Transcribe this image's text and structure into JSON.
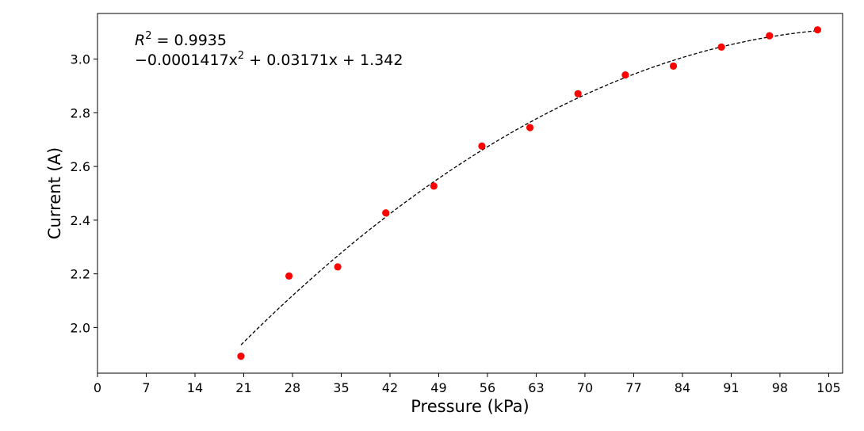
{
  "chart_data": {
    "type": "scatter",
    "xlabel": "Pressure (kPa)",
    "ylabel": "Current (A)",
    "xlim": [
      0,
      107
    ],
    "ylim": [
      1.83,
      3.17
    ],
    "x_ticks": [
      0,
      7,
      14,
      21,
      28,
      35,
      42,
      49,
      56,
      63,
      70,
      77,
      84,
      91,
      98,
      105
    ],
    "y_ticks": [
      2.0,
      2.2,
      2.4,
      2.6,
      2.8,
      3.0
    ],
    "y_tick_labels": [
      "2.0",
      "2.2",
      "2.4",
      "2.6",
      "2.8",
      "3.0"
    ],
    "grid": false,
    "series": [
      {
        "type": "scatter",
        "color": "#ff0000",
        "x": [
          20.6,
          27.5,
          34.5,
          41.4,
          48.3,
          55.2,
          62.1,
          69.0,
          75.8,
          82.7,
          89.6,
          96.5,
          103.4
        ],
        "y": [
          1.893,
          2.192,
          2.226,
          2.427,
          2.527,
          2.676,
          2.745,
          2.871,
          2.941,
          2.974,
          3.045,
          3.087,
          3.109
        ]
      },
      {
        "type": "line",
        "style": "dashed",
        "color": "#000000",
        "fit": {
          "a": -0.0001417,
          "b": 0.03171,
          "c": 1.342
        },
        "x_range": [
          20.6,
          103.4
        ]
      }
    ],
    "annotations": {
      "r2_prefix": "R",
      "r2_exponent": "2",
      "r2_value": " = 0.9935",
      "eq_part1": "−0.0001417x",
      "eq_exponent": "2",
      "eq_part2": " + 0.03171x + 1.342"
    }
  }
}
